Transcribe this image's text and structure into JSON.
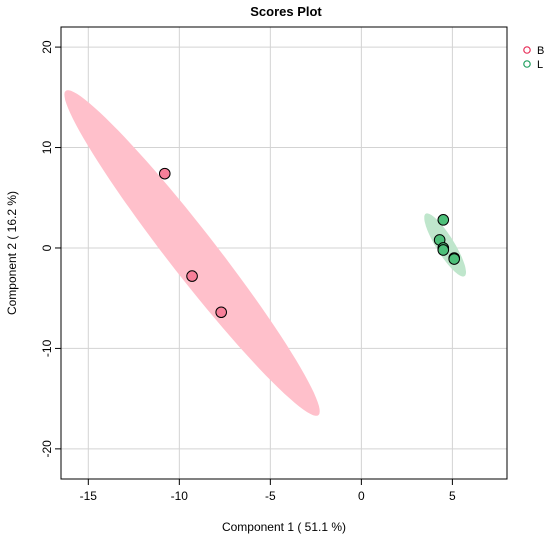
{
  "chart_data": {
    "type": "scatter",
    "title": "Scores Plot",
    "xlabel": "Component 1 ( 51.1 %)",
    "ylabel": "Component 2 ( 16.2 %)",
    "xlim": [
      -16.5,
      8
    ],
    "ylim": [
      -23,
      22
    ],
    "xticks": [
      -15,
      -10,
      -5,
      0,
      5
    ],
    "yticks": [
      -20,
      -10,
      0,
      10,
      20
    ],
    "xtick_labels": [
      "-15",
      "-10",
      "-5",
      "0",
      "5"
    ],
    "ytick_labels": [
      "-20",
      "-10",
      "0",
      "10",
      "20"
    ],
    "grid": true,
    "legend_position": "top-right",
    "series": [
      {
        "name": "B",
        "color": "#e8305a",
        "point_fill": "#f77f99",
        "ellipse_fill": "#ffc0cb",
        "ellipse": {
          "center": [
            -9.3,
            -0.5
          ],
          "semi_major": 17.6,
          "semi_minor": 1.5,
          "angle_deg": -67
        },
        "points": [
          {
            "x": -10.8,
            "y": 7.4
          },
          {
            "x": -9.3,
            "y": -2.8
          },
          {
            "x": -7.7,
            "y": -6.4
          }
        ]
      },
      {
        "name": "L",
        "color": "#22a060",
        "point_fill": "#4ec07a",
        "ellipse_fill": "#bfe6cc",
        "ellipse": {
          "center": [
            4.6,
            0.3
          ],
          "semi_major": 3.3,
          "semi_minor": 0.55,
          "angle_deg": -72
        },
        "points": [
          {
            "x": 4.5,
            "y": 2.8
          },
          {
            "x": 4.3,
            "y": 0.8
          },
          {
            "x": 4.5,
            "y": 0.0
          },
          {
            "x": 4.5,
            "y": -0.2
          },
          {
            "x": 5.1,
            "y": -1.0
          },
          {
            "x": 5.1,
            "y": -1.1
          }
        ]
      }
    ]
  }
}
